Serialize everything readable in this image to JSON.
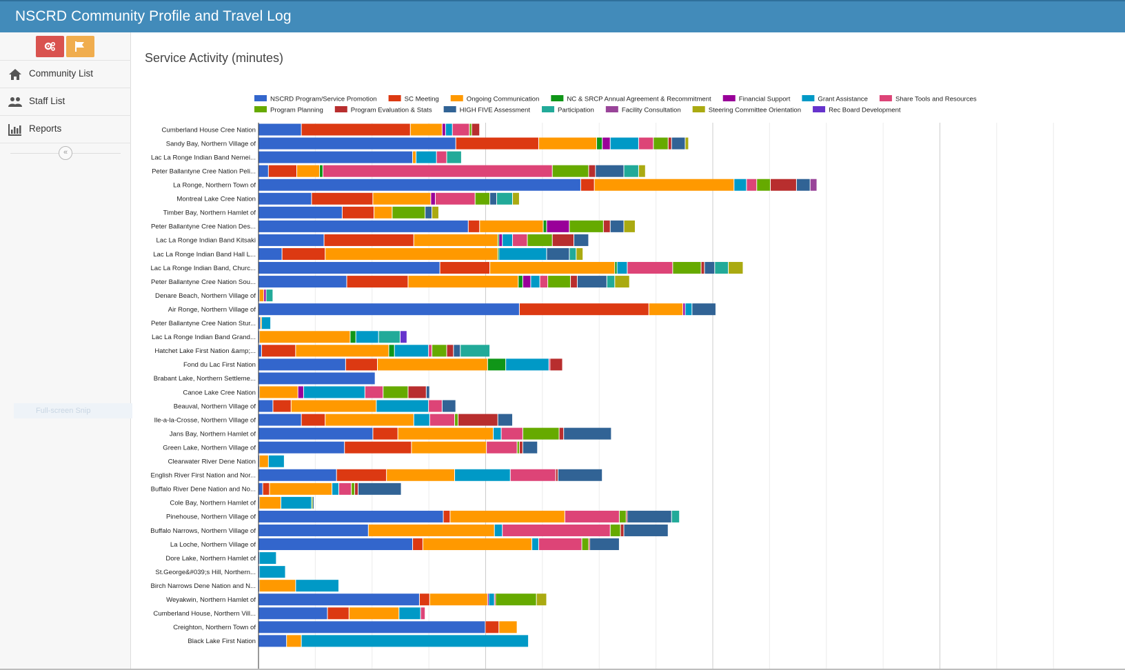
{
  "app": {
    "title": "NSCRD Community Profile and Travel Log"
  },
  "sidebar": {
    "quick_buttons": [
      {
        "icon": "gears-icon",
        "color": "#d9534f"
      },
      {
        "icon": "flag-icon",
        "color": "#f0ad4e"
      }
    ],
    "items": [
      {
        "label": "Community List",
        "icon": "home-icon"
      },
      {
        "label": "Staff List",
        "icon": "users-icon"
      },
      {
        "label": "Reports",
        "icon": "bar-chart-icon"
      }
    ],
    "collapse_icon": "chevrons-left-icon",
    "snip_text": "Full-screen Snip"
  },
  "page": {
    "title": "Service Activity (minutes)"
  },
  "chart_data": {
    "type": "bar",
    "orientation": "horizontal",
    "stacked": true,
    "xlim": [
      0,
      3900
    ],
    "grid": true,
    "legend_position": "top",
    "categories": [
      "Cumberland House Cree Nation",
      "Sandy Bay, Northern Village of",
      "Lac La Ronge Indian Band Nemei...",
      "Peter Ballantyne Cree Nation Peli...",
      "La Ronge, Northern Town of",
      "Montreal Lake Cree Nation",
      "Timber Bay, Northern Hamlet of",
      "Peter Ballantyne Cree Nation Des...",
      "Lac La Ronge Indian Band Kitsaki",
      "Lac La Ronge Indian Band Hall L...",
      "Lac La Ronge Indian Band, Churc...",
      "Peter Ballantyne Cree Nation Sou...",
      "Denare Beach, Northern Village of",
      "Air Ronge, Northern Village of",
      "Peter Ballantyne Cree Nation Stur...",
      "Lac La Ronge Indian Band Grand...",
      "Hatchet Lake First Nation &amp;...",
      "Fond du Lac First Nation",
      "Brabant Lake, Northern Settleme...",
      "Canoe Lake Cree Nation",
      "Beauval, Northern Village of",
      "Ile-a-la-Crosse, Northern Village of",
      "Jans Bay, Northern Hamlet of",
      "Green Lake, Northern Village of",
      "Clearwater River Dene Nation",
      "English River First Nation and Nor...",
      "Buffalo River Dene Nation and No...",
      "Cole Bay, Northern Hamlet of",
      "Pinehouse, Northern Village of",
      "Buffalo Narrows, Northern Village of",
      "La Loche, Northern Village of",
      "Dore Lake, Northern Hamlet of",
      "St.George&#039;s Hill, Northern...",
      "Birch Narrows Dene Nation and N...",
      "Weyakwin, Northern Hamlet of",
      "Cumberland House, Northern Vill...",
      "Creighton, Northern Town of",
      "Black Lake First Nation"
    ],
    "series": [
      {
        "name": "NSCRD Program/Service Promotion",
        "color": "#3366cc",
        "values": [
          190,
          870,
          680,
          45,
          1420,
          235,
          370,
          925,
          290,
          105,
          800,
          390,
          5,
          1150,
          10,
          5,
          15,
          385,
          515,
          5,
          65,
          190,
          505,
          380,
          5,
          345,
          20,
          5,
          815,
          485,
          680,
          5,
          5,
          5,
          710,
          305,
          1000,
          125
        ]
      },
      {
        "name": "SC Meeting",
        "color": "#dc3912",
        "values": [
          480,
          365,
          0,
          125,
          60,
          270,
          140,
          50,
          395,
          190,
          220,
          270,
          0,
          570,
          0,
          0,
          150,
          140,
          0,
          0,
          80,
          105,
          110,
          295,
          0,
          220,
          30,
          0,
          30,
          0,
          45,
          0,
          0,
          0,
          45,
          95,
          60,
          0
        ]
      },
      {
        "name": "Ongoing Communication",
        "color": "#ff9900",
        "values": [
          140,
          255,
          15,
          100,
          615,
          255,
          80,
          280,
          370,
          760,
          550,
          485,
          20,
          150,
          5,
          400,
          410,
          485,
          0,
          170,
          375,
          390,
          420,
          330,
          40,
          300,
          275,
          95,
          505,
          555,
          480,
          0,
          0,
          160,
          255,
          220,
          80,
          65
        ]
      },
      {
        "name": "NC & SRCP Annual Agreement & Recommitment",
        "color": "#109618",
        "values": [
          0,
          25,
          0,
          15,
          0,
          0,
          0,
          15,
          5,
          5,
          10,
          20,
          0,
          0,
          0,
          25,
          25,
          80,
          0,
          0,
          0,
          0,
          0,
          0,
          0,
          0,
          0,
          0,
          0,
          0,
          0,
          0,
          0,
          0,
          0,
          0,
          0,
          0
        ]
      },
      {
        "name": "Financial Support",
        "color": "#990099",
        "values": [
          15,
          35,
          0,
          0,
          0,
          20,
          0,
          100,
          15,
          0,
          0,
          35,
          10,
          10,
          0,
          0,
          0,
          0,
          0,
          25,
          0,
          0,
          0,
          0,
          0,
          0,
          0,
          0,
          0,
          0,
          0,
          0,
          0,
          0,
          5,
          0,
          0,
          0
        ]
      },
      {
        "name": "Grant Assistance",
        "color": "#0099c6",
        "values": [
          30,
          125,
          90,
          0,
          55,
          0,
          0,
          0,
          45,
          210,
          45,
          40,
          0,
          30,
          40,
          100,
          150,
          190,
          0,
          270,
          230,
          70,
          35,
          0,
          70,
          245,
          30,
          135,
          0,
          35,
          30,
          75,
          115,
          190,
          25,
          95,
          0,
          1000
        ]
      },
      {
        "name": "Share Tools and Resources",
        "color": "#dd4477",
        "values": [
          75,
          65,
          45,
          1010,
          45,
          175,
          0,
          0,
          65,
          0,
          200,
          35,
          0,
          0,
          0,
          0,
          15,
          5,
          0,
          80,
          60,
          110,
          95,
          135,
          0,
          200,
          55,
          0,
          240,
          475,
          190,
          0,
          0,
          0,
          5,
          20,
          0,
          0
        ]
      },
      {
        "name": "Program Planning",
        "color": "#66aa00",
        "values": [
          10,
          65,
          0,
          160,
          60,
          65,
          145,
          150,
          110,
          0,
          125,
          100,
          0,
          0,
          0,
          0,
          65,
          0,
          0,
          110,
          0,
          15,
          160,
          10,
          0,
          0,
          15,
          5,
          30,
          45,
          30,
          0,
          0,
          0,
          180,
          0,
          0,
          0
        ]
      },
      {
        "name": "Program Evaluation & Stats",
        "color": "#b82e2e",
        "values": [
          35,
          15,
          0,
          30,
          115,
          0,
          0,
          30,
          95,
          0,
          15,
          30,
          0,
          0,
          0,
          0,
          30,
          55,
          0,
          80,
          0,
          175,
          20,
          15,
          0,
          10,
          15,
          0,
          5,
          15,
          5,
          0,
          0,
          0,
          0,
          0,
          0,
          0
        ]
      },
      {
        "name": "HIGH FIVE Assessment",
        "color": "#316395",
        "values": [
          0,
          60,
          0,
          125,
          60,
          30,
          30,
          60,
          65,
          100,
          45,
          130,
          0,
          105,
          0,
          0,
          30,
          0,
          0,
          15,
          60,
          65,
          210,
          65,
          0,
          195,
          190,
          5,
          195,
          195,
          130,
          0,
          0,
          0,
          0,
          0,
          0,
          0
        ]
      },
      {
        "name": "Participation",
        "color": "#22aa99",
        "values": [
          0,
          0,
          65,
          65,
          0,
          70,
          0,
          0,
          0,
          30,
          60,
          35,
          30,
          0,
          0,
          95,
          130,
          0,
          0,
          0,
          0,
          0,
          0,
          0,
          0,
          0,
          0,
          0,
          35,
          0,
          0,
          0,
          0,
          0,
          0,
          0,
          0,
          0
        ]
      },
      {
        "name": "Facility Consultation",
        "color": "#994499",
        "values": [
          0,
          0,
          0,
          0,
          30,
          0,
          0,
          0,
          0,
          0,
          0,
          0,
          0,
          0,
          0,
          0,
          0,
          0,
          0,
          0,
          0,
          0,
          0,
          0,
          0,
          0,
          0,
          0,
          0,
          0,
          0,
          0,
          0,
          0,
          0,
          0,
          0,
          0
        ]
      },
      {
        "name": "Steering Committee Orientation",
        "color": "#aaaa11",
        "values": [
          0,
          15,
          0,
          30,
          0,
          30,
          30,
          50,
          0,
          30,
          65,
          65,
          0,
          0,
          0,
          0,
          0,
          0,
          0,
          0,
          0,
          0,
          0,
          0,
          0,
          0,
          0,
          0,
          0,
          0,
          0,
          0,
          0,
          0,
          45,
          0,
          0,
          0
        ]
      },
      {
        "name": "Rec Board Development",
        "color": "#6633cc",
        "values": [
          0,
          0,
          0,
          0,
          0,
          0,
          0,
          0,
          0,
          0,
          0,
          0,
          0,
          0,
          0,
          30,
          0,
          0,
          0,
          0,
          0,
          0,
          0,
          0,
          0,
          0,
          0,
          0,
          0,
          0,
          0,
          0,
          0,
          0,
          0,
          0,
          0,
          0
        ]
      }
    ]
  }
}
